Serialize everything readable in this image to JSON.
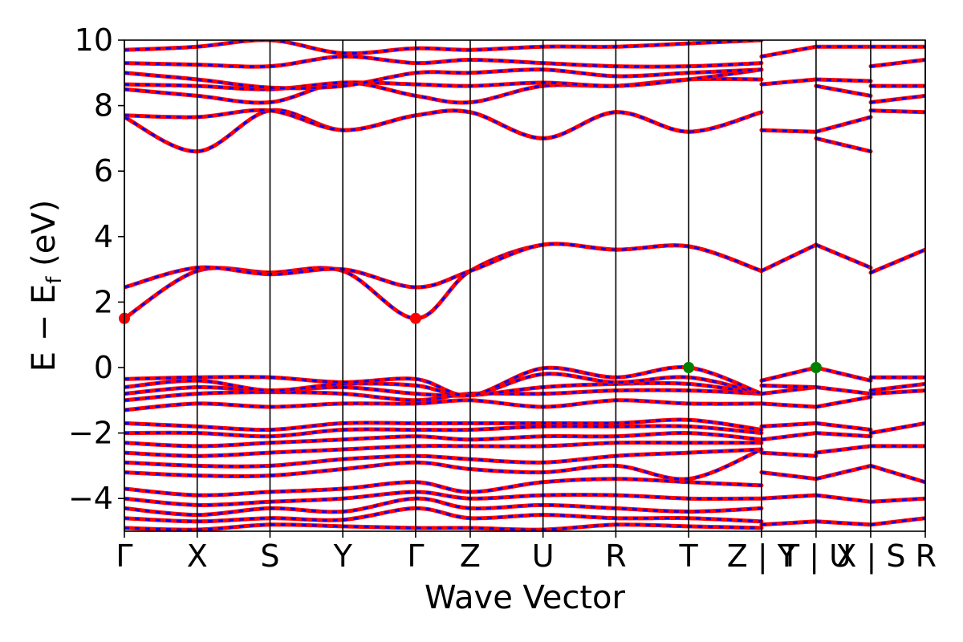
{
  "chart_data": {
    "type": "line",
    "title": "",
    "xlabel": "Wave Vector",
    "ylabel": "E − E",
    "ylabel_sub": "f",
    "ylabel_unit": " (eV)",
    "ylim": [
      -5,
      10
    ],
    "yticks": [
      {
        "value": -4,
        "label": "−4"
      },
      {
        "value": -2,
        "label": "−2"
      },
      {
        "value": 0,
        "label": "0"
      },
      {
        "value": 2,
        "label": "2"
      },
      {
        "value": 4,
        "label": "4"
      },
      {
        "value": 6,
        "label": "6"
      },
      {
        "value": 8,
        "label": "8"
      },
      {
        "value": 10,
        "label": "10"
      }
    ],
    "kpath_ticks": [
      {
        "k": 0.0,
        "label": "Γ"
      },
      {
        "k": 1.0,
        "label": "X"
      },
      {
        "k": 2.0,
        "label": "S"
      },
      {
        "k": 3.0,
        "label": "Y"
      },
      {
        "k": 4.0,
        "label": "Γ"
      },
      {
        "k": 4.75,
        "label": "Z"
      },
      {
        "k": 5.75,
        "label": "U"
      },
      {
        "k": 6.75,
        "label": "R"
      },
      {
        "k": 7.75,
        "label": "T"
      },
      {
        "k": 8.75,
        "label": "Z | Y"
      },
      {
        "k": 9.5,
        "label": "T | U"
      },
      {
        "k": 10.25,
        "label": "X | S"
      },
      {
        "k": 11.0,
        "label": "R"
      }
    ],
    "xlim": [
      0,
      11
    ],
    "segment_breaks": [
      8.75,
      9.5,
      10.25
    ],
    "colors": {
      "band_primary": "#ff0000",
      "band_secondary": "#0000ff",
      "vbm_marker": "#008000",
      "cbm_marker": "#ff0000",
      "grid": "#000000"
    },
    "band_segments": [
      {
        "name": "seg1",
        "k": [
          0,
          1,
          2,
          3,
          4,
          4.75,
          5.75,
          6.75,
          7.75,
          8.75
        ]
      },
      {
        "name": "seg2",
        "k": [
          8.75,
          9.5
        ]
      },
      {
        "name": "seg3",
        "k": [
          9.5,
          10.25
        ]
      },
      {
        "name": "seg4",
        "k": [
          10.25,
          11
        ]
      }
    ],
    "bands": [
      {
        "seg": 0,
        "e": [
          -4.9,
          -4.95,
          -4.8,
          -4.85,
          -4.9,
          -4.9,
          -4.95,
          -4.8,
          -4.85,
          -4.9
        ]
      },
      {
        "seg": 0,
        "e": [
          -4.6,
          -4.7,
          -4.6,
          -4.65,
          -4.3,
          -4.6,
          -4.5,
          -4.6,
          -4.6,
          -4.7
        ]
      },
      {
        "seg": 0,
        "e": [
          -4.3,
          -4.5,
          -4.3,
          -4.4,
          -4.0,
          -4.3,
          -4.2,
          -4.3,
          -4.4,
          -4.3
        ]
      },
      {
        "seg": 0,
        "e": [
          -4.0,
          -4.2,
          -4.1,
          -4.0,
          -3.8,
          -4.0,
          -3.9,
          -3.9,
          -4.0,
          -4.0
        ]
      },
      {
        "seg": 0,
        "e": [
          -3.7,
          -3.9,
          -3.8,
          -3.7,
          -3.5,
          -3.8,
          -3.5,
          -3.4,
          -3.5,
          -3.6
        ]
      },
      {
        "seg": 0,
        "e": [
          -3.2,
          -3.3,
          -3.3,
          -3.1,
          -2.9,
          -3.1,
          -3.2,
          -3.0,
          -3.4,
          -2.5
        ]
      },
      {
        "seg": 0,
        "e": [
          -2.9,
          -3.0,
          -3.0,
          -2.8,
          -2.7,
          -2.8,
          -2.9,
          -2.7,
          -2.6,
          -2.5
        ]
      },
      {
        "seg": 0,
        "e": [
          -2.6,
          -2.7,
          -2.6,
          -2.5,
          -2.4,
          -2.4,
          -2.4,
          -2.3,
          -2.3,
          -2.3
        ]
      },
      {
        "seg": 0,
        "e": [
          -2.3,
          -2.4,
          -2.3,
          -2.2,
          -2.1,
          -2.2,
          -2.1,
          -2.1,
          -2.0,
          -2.2
        ]
      },
      {
        "seg": 0,
        "e": [
          -2.0,
          -2.0,
          -2.1,
          -1.9,
          -1.9,
          -1.9,
          -1.8,
          -1.8,
          -1.8,
          -2.0
        ]
      },
      {
        "seg": 0,
        "e": [
          -1.7,
          -1.8,
          -1.9,
          -1.7,
          -1.7,
          -1.7,
          -1.7,
          -1.7,
          -1.6,
          -1.9
        ]
      },
      {
        "seg": 0,
        "e": [
          -1.3,
          -1.1,
          -1.2,
          -1.1,
          -1.1,
          -1.0,
          -1.2,
          -1.0,
          -1.1,
          -1.1
        ]
      },
      {
        "seg": 0,
        "e": [
          -1.0,
          -0.8,
          -0.75,
          -0.8,
          -1.0,
          -0.8,
          -0.8,
          -0.7,
          -0.7,
          -0.8
        ]
      },
      {
        "seg": 0,
        "e": [
          -0.8,
          -0.6,
          -0.7,
          -0.6,
          -0.8,
          -0.85,
          -0.6,
          -0.5,
          -0.5,
          -0.8
        ]
      },
      {
        "seg": 0,
        "e": [
          -0.6,
          -0.4,
          -0.7,
          -0.5,
          -0.55,
          -0.85,
          -0.2,
          -0.45,
          -0.3,
          -0.8
        ]
      },
      {
        "seg": 0,
        "e": [
          -0.35,
          -0.3,
          -0.3,
          -0.45,
          -0.35,
          -0.85,
          -0.02,
          -0.3,
          0.0,
          -0.8
        ]
      },
      {
        "seg": 0,
        "e": [
          1.5,
          2.95,
          2.9,
          2.95,
          1.5,
          2.95,
          3.75,
          3.6,
          3.7,
          2.95
        ]
      },
      {
        "seg": 0,
        "e": [
          2.45,
          3.05,
          2.85,
          3.0,
          2.45,
          2.95,
          3.75,
          3.6,
          3.7,
          2.95
        ]
      },
      {
        "seg": 0,
        "e": [
          7.65,
          6.6,
          7.85,
          7.25,
          7.7,
          7.8,
          7.0,
          7.8,
          7.2,
          7.8
        ]
      },
      {
        "seg": 0,
        "e": [
          7.7,
          7.65,
          7.85,
          7.25,
          7.7,
          7.8,
          7.0,
          7.8,
          7.2,
          7.8
        ]
      },
      {
        "seg": 0,
        "e": [
          8.5,
          8.3,
          8.1,
          8.7,
          8.3,
          8.1,
          8.6,
          8.6,
          8.8,
          8.8
        ]
      },
      {
        "seg": 0,
        "e": [
          8.65,
          8.6,
          8.5,
          8.7,
          8.65,
          8.6,
          8.7,
          8.6,
          8.8,
          9.1
        ]
      },
      {
        "seg": 0,
        "e": [
          9.0,
          8.8,
          8.55,
          8.6,
          9.0,
          9.0,
          9.1,
          8.9,
          9.0,
          9.1
        ]
      },
      {
        "seg": 0,
        "e": [
          9.3,
          9.25,
          9.2,
          9.5,
          9.3,
          9.4,
          9.3,
          9.2,
          9.2,
          9.3
        ]
      },
      {
        "seg": 0,
        "e": [
          9.7,
          9.8,
          10.0,
          9.6,
          9.75,
          9.7,
          9.8,
          9.8,
          9.9,
          10.0
        ]
      },
      {
        "seg": 1,
        "e": [
          -4.8,
          -4.7
        ]
      },
      {
        "seg": 1,
        "e": [
          -4.0,
          -3.9
        ]
      },
      {
        "seg": 1,
        "e": [
          -3.2,
          -3.4
        ]
      },
      {
        "seg": 1,
        "e": [
          -2.6,
          -2.7
        ]
      },
      {
        "seg": 1,
        "e": [
          -2.2,
          -2.0
        ]
      },
      {
        "seg": 1,
        "e": [
          -1.8,
          -1.7
        ]
      },
      {
        "seg": 1,
        "e": [
          -1.1,
          -1.2
        ]
      },
      {
        "seg": 1,
        "e": [
          -0.8,
          -0.6
        ]
      },
      {
        "seg": 1,
        "e": [
          -0.55,
          -0.6
        ]
      },
      {
        "seg": 1,
        "e": [
          -0.4,
          0.0
        ]
      },
      {
        "seg": 1,
        "e": [
          2.95,
          3.75
        ]
      },
      {
        "seg": 1,
        "e": [
          7.25,
          7.2
        ]
      },
      {
        "seg": 1,
        "e": [
          8.65,
          8.8
        ]
      },
      {
        "seg": 1,
        "e": [
          9.5,
          9.8
        ]
      },
      {
        "seg": 2,
        "e": [
          -4.7,
          -4.8
        ]
      },
      {
        "seg": 2,
        "e": [
          -3.9,
          -4.1
        ]
      },
      {
        "seg": 2,
        "e": [
          -3.4,
          -3.0
        ]
      },
      {
        "seg": 2,
        "e": [
          -2.6,
          -2.4
        ]
      },
      {
        "seg": 2,
        "e": [
          -2.0,
          -2.1
        ]
      },
      {
        "seg": 2,
        "e": [
          -1.7,
          -1.9
        ]
      },
      {
        "seg": 2,
        "e": [
          -1.2,
          -0.9
        ]
      },
      {
        "seg": 2,
        "e": [
          -0.6,
          -0.8
        ]
      },
      {
        "seg": 2,
        "e": [
          0.0,
          -0.4
        ]
      },
      {
        "seg": 2,
        "e": [
          3.75,
          3.05
        ]
      },
      {
        "seg": 2,
        "e": [
          7.0,
          6.6
        ]
      },
      {
        "seg": 2,
        "e": [
          7.2,
          7.65
        ]
      },
      {
        "seg": 2,
        "e": [
          8.6,
          8.3
        ]
      },
      {
        "seg": 2,
        "e": [
          8.8,
          8.75
        ]
      },
      {
        "seg": 2,
        "e": [
          9.8,
          9.8
        ]
      },
      {
        "seg": 3,
        "e": [
          -4.8,
          -4.6
        ]
      },
      {
        "seg": 3,
        "e": [
          -4.1,
          -4.0
        ]
      },
      {
        "seg": 3,
        "e": [
          -3.0,
          -3.5
        ]
      },
      {
        "seg": 3,
        "e": [
          -2.4,
          -2.4
        ]
      },
      {
        "seg": 3,
        "e": [
          -2.0,
          -1.7
        ]
      },
      {
        "seg": 3,
        "e": [
          -0.8,
          -0.7
        ]
      },
      {
        "seg": 3,
        "e": [
          -0.7,
          -0.5
        ]
      },
      {
        "seg": 3,
        "e": [
          -0.3,
          -0.3
        ]
      },
      {
        "seg": 3,
        "e": [
          2.9,
          3.6
        ]
      },
      {
        "seg": 3,
        "e": [
          7.85,
          7.8
        ]
      },
      {
        "seg": 3,
        "e": [
          8.1,
          8.3
        ]
      },
      {
        "seg": 3,
        "e": [
          8.6,
          8.6
        ]
      },
      {
        "seg": 3,
        "e": [
          9.2,
          9.4
        ]
      },
      {
        "seg": 3,
        "e": [
          9.8,
          9.8
        ]
      }
    ],
    "markers": [
      {
        "name": "cbm",
        "k": 0.0,
        "e": 1.5,
        "color": "#ff0000"
      },
      {
        "name": "cbm",
        "k": 4.0,
        "e": 1.5,
        "color": "#ff0000"
      },
      {
        "name": "vbm",
        "k": 7.75,
        "e": 0.0,
        "color": "#008000"
      },
      {
        "name": "vbm",
        "k": 9.5,
        "e": 0.0,
        "color": "#008000"
      }
    ]
  }
}
